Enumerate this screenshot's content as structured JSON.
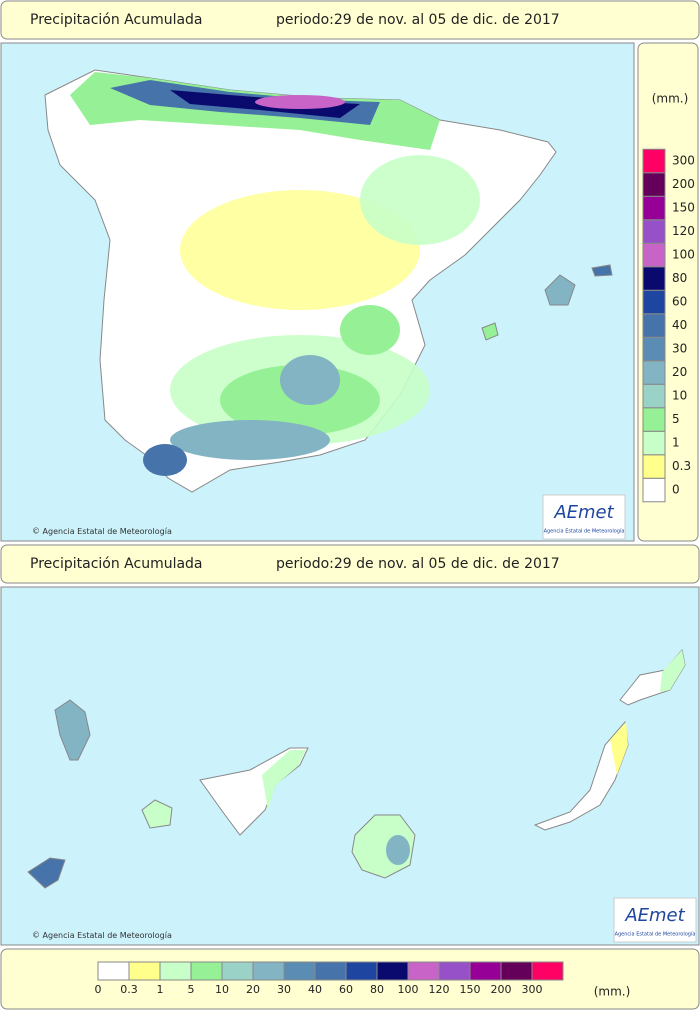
{
  "header": {
    "title": "Precipitación Acumulada",
    "period": "periodo:29 de nov. al 05 de dic. de 2017"
  },
  "header2": {
    "title": "Precipitación Acumulada",
    "period": "periodo:29 de nov. al 05 de dic. de 2017"
  },
  "credit": "Agencia Estatal de Meteorología",
  "credit2": "Agencia Estatal de Meteorología",
  "logo": {
    "name": "AEmet",
    "subtitle": "Agencia Estatal de Meteorología"
  },
  "unit": "(mm.)",
  "legend": [
    {
      "label": "0",
      "color": "#ffffff"
    },
    {
      "label": "0.3",
      "color": "#ffff8c"
    },
    {
      "label": "1",
      "color": "#c8ffc8"
    },
    {
      "label": "5",
      "color": "#96f096"
    },
    {
      "label": "10",
      "color": "#9bd2c8"
    },
    {
      "label": "20",
      "color": "#82b4c3"
    },
    {
      "label": "30",
      "color": "#5a8cb4"
    },
    {
      "label": "40",
      "color": "#4673aa"
    },
    {
      "label": "60",
      "color": "#1e46a0"
    },
    {
      "label": "80",
      "color": "#0a0a6e"
    },
    {
      "label": "100",
      "color": "#c864c8"
    },
    {
      "label": "120",
      "color": "#9650c8"
    },
    {
      "label": "150",
      "color": "#960096"
    },
    {
      "label": "200",
      "color": "#64005a"
    },
    {
      "label": "300",
      "color": "#ff0064"
    }
  ]
}
